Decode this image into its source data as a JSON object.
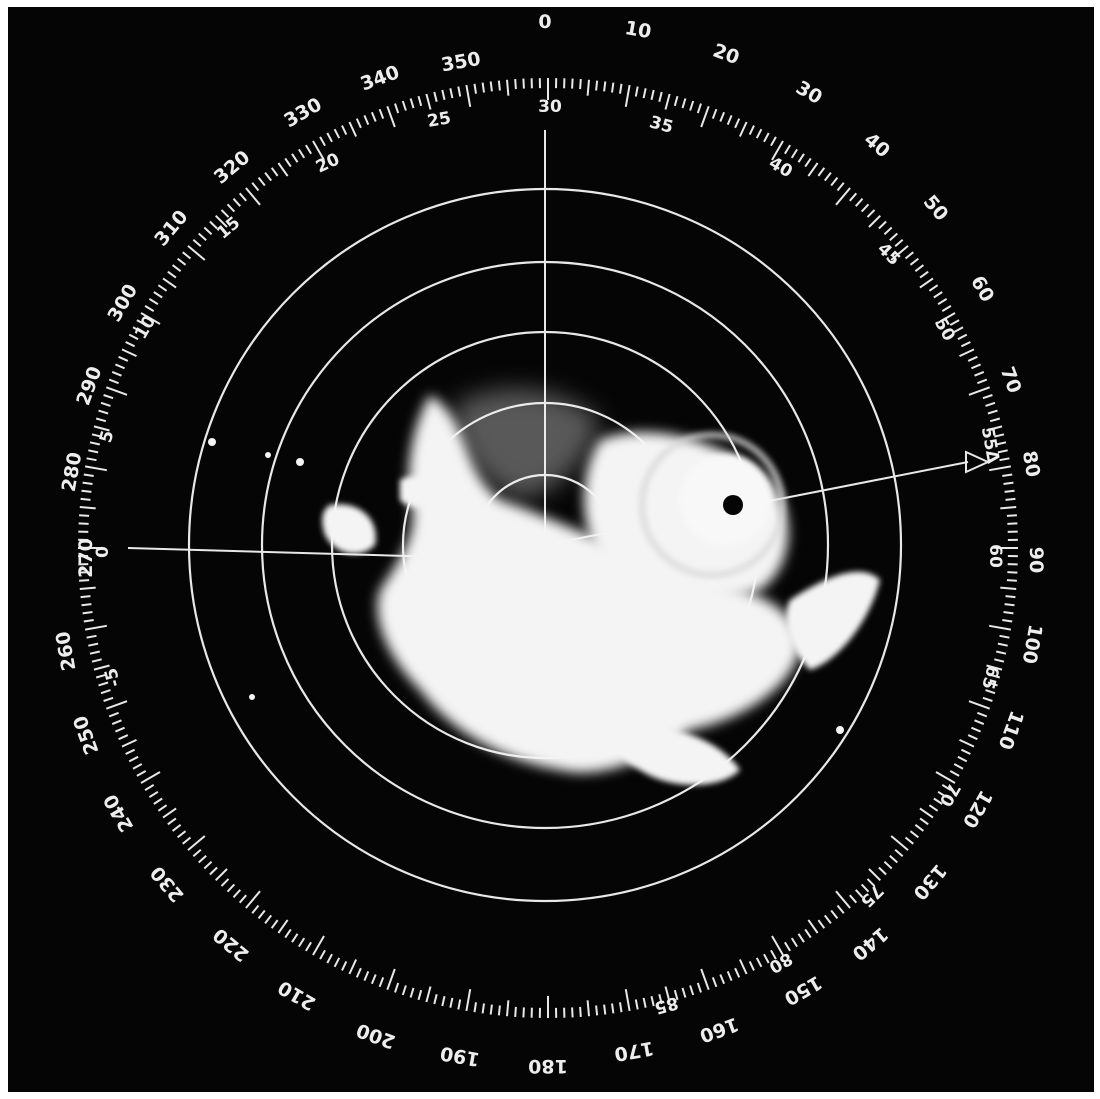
{
  "scope": {
    "azimuth_labels": [
      "0",
      "10",
      "20",
      "30",
      "40",
      "50",
      "60",
      "70",
      "80",
      "90",
      "100",
      "110",
      "120",
      "130",
      "140",
      "150",
      "160",
      "170",
      "180",
      "190",
      "200",
      "210",
      "220",
      "230",
      "240",
      "250",
      "260",
      "270",
      "280",
      "290",
      "300",
      "310",
      "320",
      "330",
      "340",
      "350"
    ],
    "time_labels": [
      "0",
      "5",
      "10",
      "15",
      "20",
      "25",
      "30",
      "35",
      "40",
      "45",
      "50",
      "55",
      "60",
      "65",
      "70",
      "75",
      "80",
      "85",
      "-5"
    ],
    "marker_label": "55Δ"
  }
}
